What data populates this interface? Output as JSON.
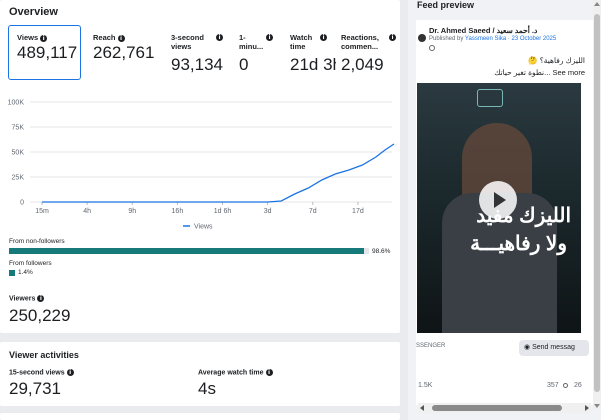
{
  "overview": {
    "title": "Overview",
    "metrics": [
      {
        "label": "Views",
        "value": "489,117"
      },
      {
        "label": "Reach",
        "value": "262,761"
      },
      {
        "label": "3-second views",
        "value": "93,134"
      },
      {
        "label": "1-minu...",
        "value": "0"
      },
      {
        "label": "Watch time",
        "value": "21d 3h"
      },
      {
        "label": "Reactions, commen...",
        "value": "2,049"
      }
    ]
  },
  "chart_data": {
    "type": "line",
    "x_ticks": [
      "15m",
      "4h",
      "9h",
      "16h",
      "1d 6h",
      "3d",
      "7d",
      "17d"
    ],
    "y_ticks": [
      "0",
      "25K",
      "50K",
      "75K",
      "100K"
    ],
    "ylim": [
      0,
      100000
    ],
    "series": [
      {
        "name": "Views",
        "points": [
          [
            0,
            0
          ],
          [
            1,
            0
          ],
          [
            2,
            0
          ],
          [
            3,
            0
          ],
          [
            4,
            0
          ],
          [
            5,
            0
          ],
          [
            5.3,
            1000
          ],
          [
            5.6,
            8000
          ],
          [
            5.9,
            14000
          ],
          [
            6.2,
            22000
          ],
          [
            6.5,
            28000
          ],
          [
            6.8,
            32000
          ],
          [
            7.1,
            37000
          ],
          [
            7.4,
            45000
          ],
          [
            7.6,
            52000
          ],
          [
            7.8,
            58000
          ]
        ]
      }
    ],
    "legend": "Views",
    "color": "#1b74e4"
  },
  "followers": {
    "non_label": "From non-followers",
    "non_pct": "98.6%",
    "non_value": 98.6,
    "fol_label": "From followers",
    "fol_pct": "1.4%",
    "fol_value": 1.4
  },
  "viewers": {
    "label": "Viewers",
    "value": "250,229"
  },
  "activities": {
    "title": "Viewer activities",
    "views15_label": "15-second views",
    "views15_value": "29,731",
    "avg_label": "Average watch time",
    "avg_value": "4s"
  },
  "preview": {
    "title": "Feed preview",
    "author": "Dr. Ahmed Saeed / د. أحمد سعيد",
    "published_by": "Published by",
    "publisher": "Yassmeen Sika",
    "date": "23 October 2025",
    "caption1": "الليزك رفاهية؟ 🤔",
    "caption2": "نطوة تغير حياتك... See more",
    "video_text1": "الليزك مفيد",
    "video_text2": "ولا رفاهيـــة",
    "messenger": "SSENGER",
    "send_btn": "Send messag",
    "likes": "1.5K",
    "comments": "357",
    "shares": "26"
  },
  "colors": {
    "accent": "#1b74e4",
    "teal": "#167a7a"
  }
}
